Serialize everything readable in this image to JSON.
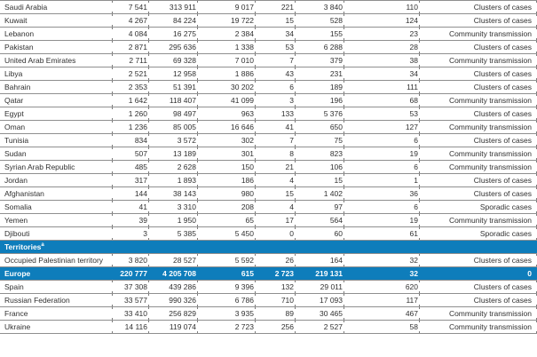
{
  "colors": {
    "accent_blue": "#0e7dbb",
    "border_gray": "#8f8f8f",
    "tick_gray": "#7a7a7a",
    "text": "#303030",
    "region_text": "#ffffff"
  },
  "table": {
    "rows": [
      {
        "type": "country",
        "name": "Saudi Arabia",
        "values": [
          "7 541",
          "313 911",
          "9 017",
          "221",
          "3 840",
          "110"
        ],
        "classification": "Clusters of cases"
      },
      {
        "type": "country",
        "name": "Kuwait",
        "values": [
          "4 267",
          "84 224",
          "19 722",
          "15",
          "528",
          "124"
        ],
        "classification": "Clusters of cases"
      },
      {
        "type": "country",
        "name": "Lebanon",
        "values": [
          "4 084",
          "16 275",
          "2 384",
          "34",
          "155",
          "23"
        ],
        "classification": "Community transmission"
      },
      {
        "type": "country",
        "name": "Pakistan",
        "values": [
          "2 871",
          "295 636",
          "1 338",
          "53",
          "6 288",
          "28"
        ],
        "classification": "Clusters of cases"
      },
      {
        "type": "country",
        "name": "United Arab Emirates",
        "values": [
          "2 711",
          "69 328",
          "7 010",
          "7",
          "379",
          "38"
        ],
        "classification": "Community transmission"
      },
      {
        "type": "country",
        "name": "Libya",
        "values": [
          "2 521",
          "12 958",
          "1 886",
          "43",
          "231",
          "34"
        ],
        "classification": "Clusters of cases"
      },
      {
        "type": "country",
        "name": "Bahrain",
        "values": [
          "2 353",
          "51 391",
          "30 202",
          "6",
          "189",
          "111"
        ],
        "classification": "Clusters of cases"
      },
      {
        "type": "country",
        "name": "Qatar",
        "values": [
          "1 642",
          "118 407",
          "41 099",
          "3",
          "196",
          "68"
        ],
        "classification": "Community transmission"
      },
      {
        "type": "country",
        "name": "Egypt",
        "values": [
          "1 260",
          "98 497",
          "963",
          "133",
          "5 376",
          "53"
        ],
        "classification": "Clusters of cases"
      },
      {
        "type": "country",
        "name": "Oman",
        "values": [
          "1 236",
          "85 005",
          "16 646",
          "41",
          "650",
          "127"
        ],
        "classification": "Community transmission"
      },
      {
        "type": "country",
        "name": "Tunisia",
        "values": [
          "834",
          "3 572",
          "302",
          "7",
          "75",
          "6"
        ],
        "classification": "Clusters of cases"
      },
      {
        "type": "country",
        "name": "Sudan",
        "values": [
          "507",
          "13 189",
          "301",
          "8",
          "823",
          "19"
        ],
        "classification": "Community transmission"
      },
      {
        "type": "country",
        "name": "Syrian Arab Republic",
        "values": [
          "485",
          "2 628",
          "150",
          "21",
          "106",
          "6"
        ],
        "classification": "Community transmission"
      },
      {
        "type": "country",
        "name": "Jordan",
        "values": [
          "317",
          "1 893",
          "186",
          "4",
          "15",
          "1"
        ],
        "classification": "Clusters of cases"
      },
      {
        "type": "country",
        "name": "Afghanistan",
        "values": [
          "144",
          "38 143",
          "980",
          "15",
          "1 402",
          "36"
        ],
        "classification": "Clusters of cases"
      },
      {
        "type": "country",
        "name": "Somalia",
        "values": [
          "41",
          "3 310",
          "208",
          "4",
          "97",
          "6"
        ],
        "classification": "Sporadic cases"
      },
      {
        "type": "country",
        "name": "Yemen",
        "values": [
          "39",
          "1 950",
          "65",
          "17",
          "564",
          "19"
        ],
        "classification": "Community transmission"
      },
      {
        "type": "country",
        "name": "Djibouti",
        "values": [
          "3",
          "5 385",
          "5 450",
          "0",
          "60",
          "61"
        ],
        "classification": "Sporadic cases"
      },
      {
        "type": "section",
        "name": "Territories",
        "sup": "a"
      },
      {
        "type": "country",
        "name": "Occupied Palestinian territory",
        "values": [
          "3 820",
          "28 527",
          "5 592",
          "26",
          "164",
          "32"
        ],
        "classification": "Clusters of cases"
      },
      {
        "type": "region",
        "name": "Europe",
        "values": [
          "220 777",
          "4 205 708",
          "615",
          "2 723",
          "219 131",
          "32"
        ],
        "classification": "0"
      },
      {
        "type": "country",
        "name": "Spain",
        "values": [
          "37 308",
          "439 286",
          "9 396",
          "132",
          "29 011",
          "620"
        ],
        "classification": "Clusters of cases"
      },
      {
        "type": "country",
        "name": "Russian Federation",
        "values": [
          "33 577",
          "990 326",
          "6 786",
          "710",
          "17 093",
          "117"
        ],
        "classification": "Clusters of cases"
      },
      {
        "type": "country",
        "name": "France",
        "values": [
          "33 410",
          "256 829",
          "3 935",
          "89",
          "30 465",
          "467"
        ],
        "classification": "Community transmission"
      },
      {
        "type": "country",
        "name": "Ukraine",
        "values": [
          "14 116",
          "119 074",
          "2 723",
          "256",
          "2 527",
          "58"
        ],
        "classification": "Community transmission"
      }
    ]
  }
}
